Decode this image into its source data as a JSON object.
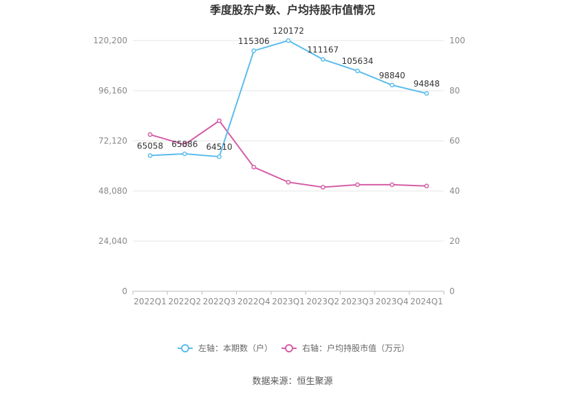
{
  "chart_data": {
    "type": "line",
    "title": "季度股东户数、户均持股市值情况",
    "categories": [
      "2022Q1",
      "2022Q2",
      "2022Q3",
      "2022Q4",
      "2023Q1",
      "2023Q2",
      "2023Q3",
      "2023Q4",
      "2024Q1"
    ],
    "left_axis": {
      "min": 0,
      "max": 120200,
      "ticks": [
        "0",
        "24,040",
        "48,080",
        "72,120",
        "96,160",
        "120,200"
      ]
    },
    "right_axis": {
      "min": 0,
      "max": 100,
      "ticks": [
        "0",
        "20",
        "40",
        "60",
        "80",
        "100"
      ]
    },
    "grid": true,
    "legend_position": "bottom",
    "series": [
      {
        "name": "左轴：本期数（户）",
        "axis": "left",
        "color": "#5bbcec",
        "values": [
          65058,
          65886,
          64510,
          115306,
          120172,
          111167,
          105634,
          98840,
          94848
        ],
        "labels": [
          "65058",
          "65886",
          "64510",
          "115306",
          "120172",
          "111167",
          "105634",
          "98840",
          "94848"
        ]
      },
      {
        "name": "右轴：户均持股市值（万元）",
        "axis": "right",
        "color": "#d45ca6",
        "values": [
          62.5,
          58.5,
          68.0,
          49.5,
          43.5,
          41.5,
          42.5,
          42.5,
          42.0
        ]
      }
    ]
  },
  "source_text": "数据来源：恒生聚源"
}
